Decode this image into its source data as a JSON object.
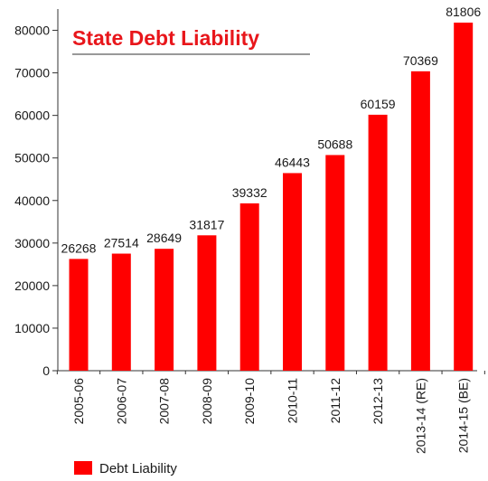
{
  "chart_data": {
    "type": "bar",
    "title": "State Debt Liability",
    "xlabel": "",
    "ylabel": "",
    "categories": [
      "2005-06",
      "2006-07",
      "2007-08",
      "2008-09",
      "2009-10",
      "2010-11",
      "2011-12",
      "2012-13",
      "2013-14 (RE)",
      "2014-15 (BE)"
    ],
    "series": [
      {
        "name": "Debt Liability",
        "values": [
          26268,
          27514,
          28649,
          31817,
          39332,
          46443,
          50688,
          60159,
          70369,
          81806
        ]
      }
    ],
    "data_labels": [
      "26268",
      "27514",
      "28649",
      "31817",
      "39332",
      "46443",
      "50688",
      "60159",
      "70369",
      "81806"
    ],
    "ylim": [
      0,
      85000
    ],
    "yticks": [
      0,
      10000,
      20000,
      30000,
      40000,
      50000,
      60000,
      70000,
      80000
    ],
    "ytick_labels": [
      "0",
      "10000",
      "20000",
      "30000",
      "40000",
      "50000",
      "60000",
      "70000",
      "80000"
    ],
    "grid": false,
    "legend_position": "bottom-left",
    "colors": {
      "bar": "#ff0000",
      "title": "#e8161b",
      "axis": "#333333",
      "text": "#1a1a1a"
    }
  }
}
